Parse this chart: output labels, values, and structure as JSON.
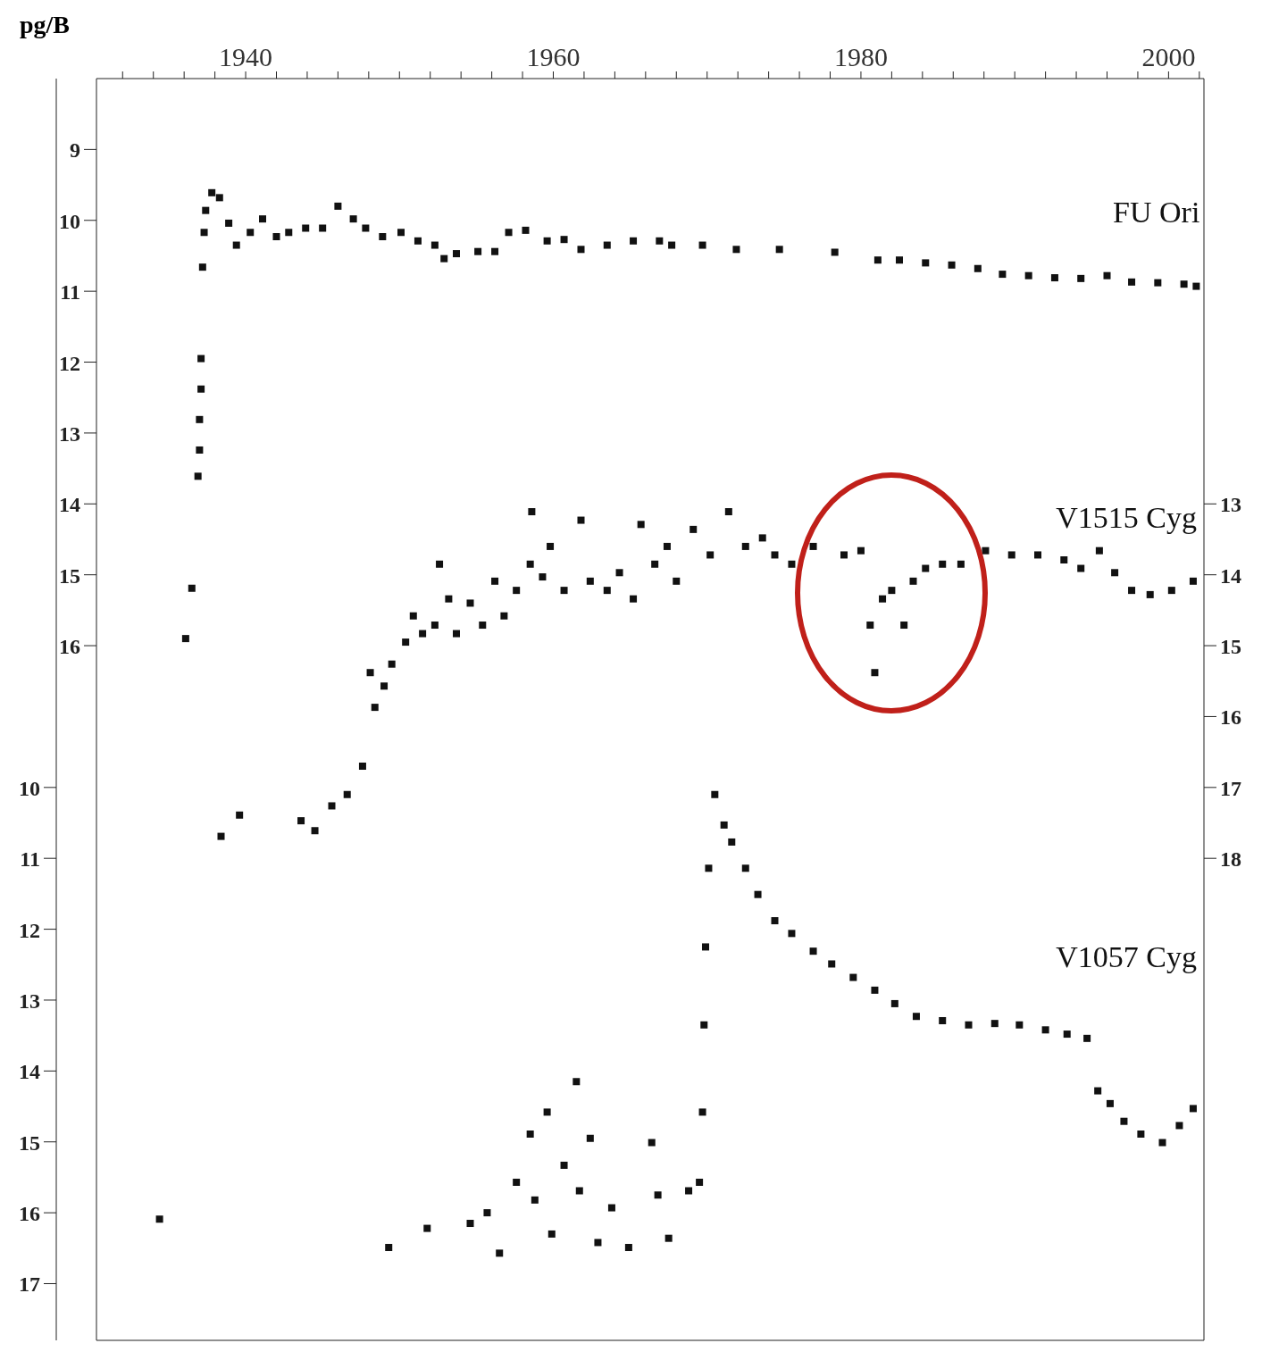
{
  "chart_data": {
    "type": "scatter",
    "ylabel": "pg/B",
    "marker": "square",
    "xlim": [
      1930.3,
      2002.3
    ],
    "xticks": [
      {
        "value": 1932,
        "label": null
      },
      {
        "value": 1934,
        "label": null
      },
      {
        "value": 1936,
        "label": null
      },
      {
        "value": 1938,
        "label": null
      },
      1940,
      {
        "value": 1942,
        "label": null
      },
      {
        "value": 1944,
        "label": null
      },
      {
        "value": 1946,
        "label": null
      },
      {
        "value": 1948,
        "label": null
      },
      {
        "value": 1950,
        "label": null
      },
      {
        "value": 1952,
        "label": null
      },
      {
        "value": 1954,
        "label": null
      },
      {
        "value": 1956,
        "label": null
      },
      {
        "value": 1958,
        "label": null
      },
      1960,
      {
        "value": 1962,
        "label": null
      },
      {
        "value": 1964,
        "label": null
      },
      {
        "value": 1966,
        "label": null
      },
      {
        "value": 1968,
        "label": null
      },
      {
        "value": 1970,
        "label": null
      },
      {
        "value": 1972,
        "label": null
      },
      {
        "value": 1974,
        "label": null
      },
      {
        "value": 1976,
        "label": null
      },
      {
        "value": 1978,
        "label": null
      },
      1980,
      {
        "value": 1982,
        "label": null
      },
      {
        "value": 1984,
        "label": null
      },
      {
        "value": 1986,
        "label": null
      },
      {
        "value": 1988,
        "label": null
      },
      {
        "value": 1990,
        "label": null
      },
      {
        "value": 1992,
        "label": null
      },
      {
        "value": 1994,
        "label": null
      },
      {
        "value": 1996,
        "label": null
      },
      {
        "value": 1998,
        "label": null
      },
      2000,
      {
        "value": 2002,
        "label": null
      }
    ],
    "ylim": [
      25.8,
      8
    ],
    "yticks": [
      9,
      10,
      11,
      12,
      13,
      14,
      15,
      16
    ],
    "y2lim": [
      24.8,
      7
    ],
    "y2ticks": [
      13,
      14,
      15,
      16,
      17,
      18
    ],
    "y3lim": [
      17.8,
      0
    ],
    "y3ticks": [
      10,
      11,
      12,
      13,
      14,
      15,
      16,
      17
    ],
    "series": [
      {
        "name": "FU Ori",
        "color": "#111111",
        "x": [
          1936.1,
          1936.5,
          1936.9,
          1937.0,
          1937.0,
          1937.1,
          1937.1,
          1937.2,
          1937.3,
          1937.4,
          1937.8,
          1938.3,
          1938.9,
          1939.4,
          1940.3,
          1941.1,
          1942.0,
          1942.8,
          1943.9,
          1945.0,
          1946.0,
          1947.0,
          1947.8,
          1948.9,
          1950.1,
          1951.2,
          1952.3,
          1952.9,
          1953.7,
          1955.1,
          1956.2,
          1957.1,
          1958.2,
          1959.6,
          1960.7,
          1961.8,
          1963.5,
          1965.2,
          1966.9,
          1967.7,
          1969.7,
          1971.9,
          1974.7,
          1978.3,
          1981.1,
          1982.5,
          1984.2,
          1985.9,
          1987.6,
          1989.2,
          1990.9,
          1992.6,
          1994.3,
          1996.0,
          1997.6,
          1999.3,
          2001.0,
          2001.8
        ],
        "values": [
          15.9,
          15.19,
          13.61,
          13.24,
          12.81,
          12.38,
          11.95,
          10.66,
          10.17,
          9.86,
          9.61,
          9.68,
          10.04,
          10.35,
          10.17,
          9.98,
          10.23,
          10.17,
          10.11,
          10.11,
          9.8,
          9.98,
          10.11,
          10.23,
          10.17,
          10.29,
          10.35,
          10.54,
          10.47,
          10.44,
          10.44,
          10.17,
          10.14,
          10.29,
          10.27,
          10.41,
          10.35,
          10.29,
          10.29,
          10.35,
          10.35,
          10.41,
          10.41,
          10.45,
          10.56,
          10.56,
          10.6,
          10.63,
          10.68,
          10.76,
          10.78,
          10.81,
          10.82,
          10.78,
          10.87,
          10.88,
          10.9,
          10.93
        ]
      },
      {
        "name": "V1515 Cyg",
        "color": "#111111",
        "axis": "y2",
        "x": [
          1938.4,
          1939.6,
          1943.6,
          1944.5,
          1945.6,
          1946.6,
          1947.6,
          1948.1,
          1948.4,
          1949.0,
          1949.5,
          1950.4,
          1950.9,
          1951.5,
          1952.3,
          1952.6,
          1953.2,
          1953.7,
          1954.6,
          1955.4,
          1956.2,
          1956.8,
          1957.6,
          1958.5,
          1958.6,
          1959.3,
          1959.8,
          1960.7,
          1961.8,
          1962.4,
          1963.5,
          1964.3,
          1965.2,
          1965.7,
          1966.6,
          1967.4,
          1968.0,
          1969.1,
          1970.2,
          1971.4,
          1972.5,
          1973.6,
          1974.4,
          1975.5,
          1976.9,
          1978.9,
          1980.0,
          1980.6,
          1980.9,
          1981.4,
          1982.0,
          1982.8,
          1983.4,
          1984.2,
          1985.3,
          1986.5,
          1988.1,
          1989.8,
          1991.5,
          1993.2,
          1994.3,
          1995.5,
          1996.5,
          1997.6,
          1998.8,
          2000.2,
          2001.6
        ],
        "values": [
          17.69,
          17.39,
          17.47,
          17.61,
          17.26,
          17.1,
          16.7,
          15.38,
          15.87,
          15.57,
          15.26,
          14.95,
          14.58,
          14.83,
          14.71,
          13.85,
          14.34,
          14.83,
          14.4,
          14.71,
          14.09,
          14.58,
          14.22,
          13.85,
          13.11,
          14.03,
          13.6,
          14.22,
          13.23,
          14.09,
          14.22,
          13.97,
          14.34,
          13.29,
          13.85,
          13.6,
          14.09,
          13.36,
          13.72,
          13.11,
          13.6,
          13.48,
          13.72,
          13.85,
          13.6,
          13.72,
          13.66,
          14.71,
          15.38,
          14.34,
          14.22,
          14.71,
          14.09,
          13.91,
          13.85,
          13.85,
          13.66,
          13.72,
          13.72,
          13.79,
          13.91,
          13.66,
          13.97,
          14.22,
          14.28,
          14.22,
          14.09
        ]
      },
      {
        "name": "V1057 Cyg",
        "color": "#111111",
        "axis": "y3",
        "x": [
          1934.4,
          1949.3,
          1951.8,
          1954.6,
          1955.7,
          1956.5,
          1957.6,
          1958.5,
          1958.8,
          1959.6,
          1959.9,
          1960.7,
          1961.5,
          1961.7,
          1962.4,
          1962.9,
          1963.8,
          1964.9,
          1966.4,
          1966.8,
          1967.5,
          1968.8,
          1969.5,
          1969.7,
          1969.8,
          1969.9,
          1970.1,
          1970.5,
          1971.1,
          1971.6,
          1972.5,
          1973.3,
          1974.4,
          1975.5,
          1976.9,
          1978.1,
          1979.5,
          1980.9,
          1982.2,
          1983.6,
          1985.3,
          1987.0,
          1988.7,
          1990.3,
          1992.0,
          1993.4,
          1994.7,
          1995.4,
          1996.2,
          1997.1,
          1998.2,
          1999.6,
          2000.7,
          2001.6
        ],
        "values": [
          16.09,
          16.49,
          16.22,
          16.15,
          16.0,
          16.57,
          15.57,
          14.89,
          15.82,
          14.58,
          16.3,
          15.33,
          14.15,
          15.69,
          14.95,
          16.42,
          15.93,
          16.49,
          15.01,
          15.75,
          16.36,
          15.69,
          15.57,
          14.58,
          13.35,
          12.25,
          11.14,
          10.1,
          10.53,
          10.77,
          11.14,
          11.51,
          11.88,
          12.06,
          12.31,
          12.49,
          12.68,
          12.86,
          13.05,
          13.23,
          13.29,
          13.35,
          13.33,
          13.35,
          13.42,
          13.48,
          13.54,
          14.28,
          14.46,
          14.71,
          14.89,
          15.01,
          14.77,
          14.53
        ]
      }
    ]
  }
}
